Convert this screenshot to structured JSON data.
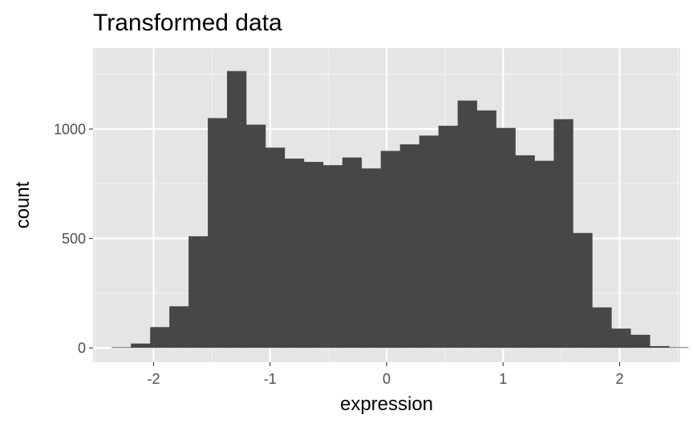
{
  "chart_data": {
    "type": "bar",
    "subtype": "histogram",
    "title": "Transformed data",
    "xlabel": "expression",
    "ylabel": "count",
    "xlim": [
      -2.52,
      2.52
    ],
    "ylim": [
      -65,
      1370
    ],
    "x_ticks": [
      -2,
      -1,
      0,
      1,
      2
    ],
    "x_tick_labels": [
      "-2",
      "-1",
      "0",
      "1",
      "2"
    ],
    "y_ticks": [
      0,
      500,
      1000
    ],
    "y_tick_labels": [
      "0",
      "500",
      "1000"
    ],
    "bin_width": 0.165,
    "bin_starts": [
      -2.36,
      -2.195,
      -2.03,
      -1.865,
      -1.7,
      -1.535,
      -1.37,
      -1.205,
      -1.04,
      -0.875,
      -0.71,
      -0.545,
      -0.38,
      -0.215,
      -0.05,
      0.115,
      0.28,
      0.445,
      0.61,
      0.775,
      0.94,
      1.105,
      1.27,
      1.435,
      1.6,
      1.765,
      1.93,
      2.095,
      2.26,
      2.425
    ],
    "counts": [
      3,
      20,
      95,
      190,
      510,
      1050,
      1265,
      1020,
      915,
      865,
      850,
      835,
      870,
      820,
      900,
      930,
      970,
      1015,
      1130,
      1085,
      1005,
      880,
      855,
      1045,
      525,
      185,
      88,
      60,
      8,
      3
    ],
    "bar_color": "#474747",
    "panel_background": "#e5e5e5",
    "grid": true,
    "legend": "none"
  }
}
